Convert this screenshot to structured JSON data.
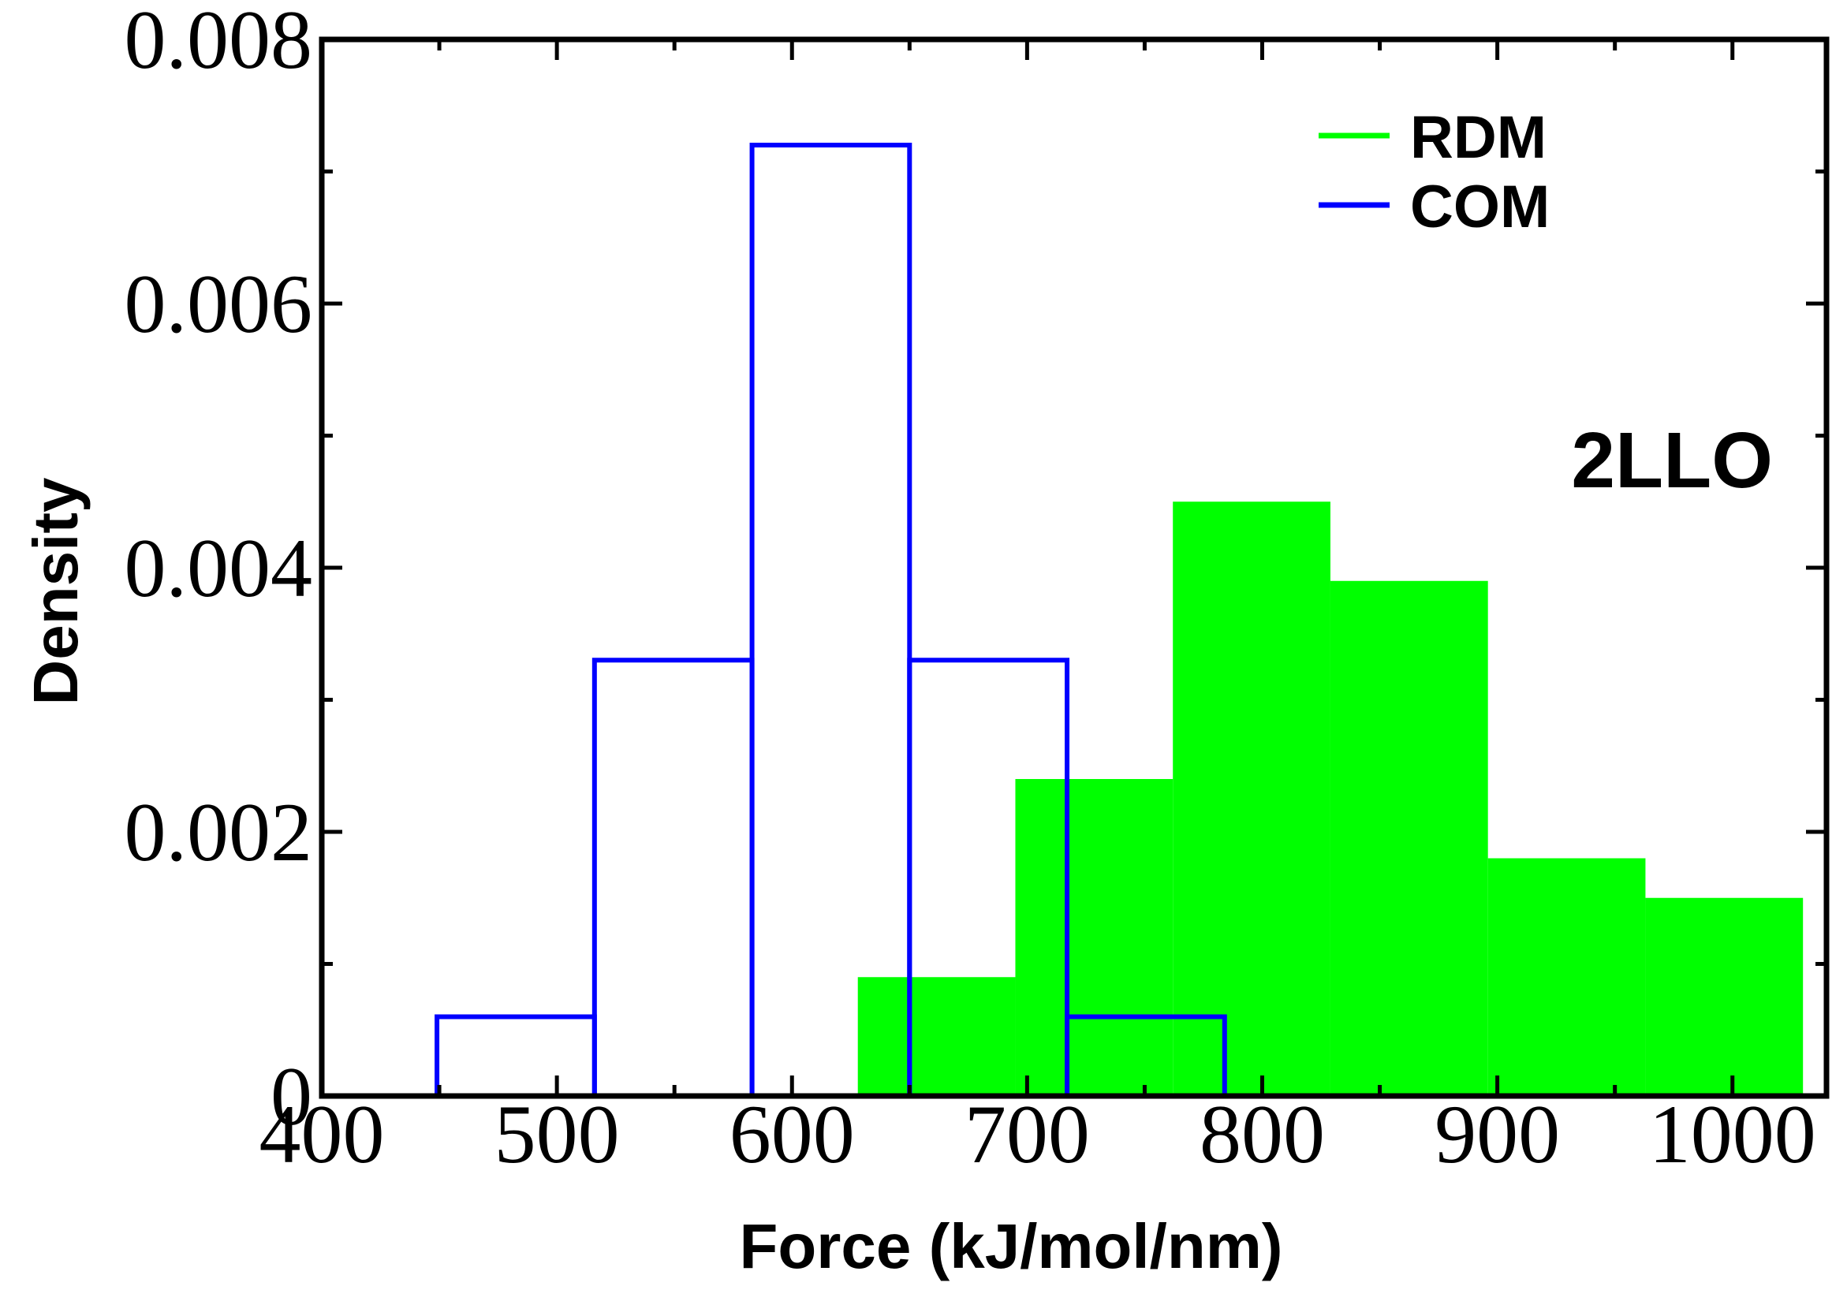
{
  "chart_data": {
    "type": "bar",
    "subtype": "histogram",
    "title": "",
    "xlabel": "Force (kJ/mol/nm)",
    "ylabel": "Density",
    "xlim": [
      400,
      1040
    ],
    "ylim": [
      0,
      0.008
    ],
    "x_ticks": [
      400,
      500,
      600,
      700,
      800,
      900,
      1000
    ],
    "x_tick_labels": [
      "400",
      "500",
      "600",
      "700",
      "800",
      "900",
      "1000"
    ],
    "y_ticks": [
      0,
      0.002,
      0.004,
      0.006,
      0.008
    ],
    "y_tick_labels": [
      "0",
      "0.002",
      "0.004",
      "0.006",
      "0.008"
    ],
    "grid": false,
    "legend_position": "top-right",
    "annotation": "2LLO",
    "series": [
      {
        "name": "RDM",
        "style": "filled",
        "color": "#00ff00",
        "bins": [
          {
            "x0": 628,
            "x1": 695,
            "density": 0.0009
          },
          {
            "x0": 695,
            "x1": 762,
            "density": 0.0024
          },
          {
            "x0": 762,
            "x1": 829,
            "density": 0.0045
          },
          {
            "x0": 829,
            "x1": 896,
            "density": 0.0039
          },
          {
            "x0": 896,
            "x1": 963,
            "density": 0.0018
          },
          {
            "x0": 963,
            "x1": 1030,
            "density": 0.0015
          }
        ]
      },
      {
        "name": "COM",
        "style": "outline",
        "color": "#0000ff",
        "bins": [
          {
            "x0": 449,
            "x1": 516,
            "density": 0.0006
          },
          {
            "x0": 516,
            "x1": 583,
            "density": 0.0033
          },
          {
            "x0": 583,
            "x1": 650,
            "density": 0.0072
          },
          {
            "x0": 650,
            "x1": 717,
            "density": 0.0033
          },
          {
            "x0": 717,
            "x1": 784,
            "density": 0.0006
          }
        ]
      }
    ]
  }
}
